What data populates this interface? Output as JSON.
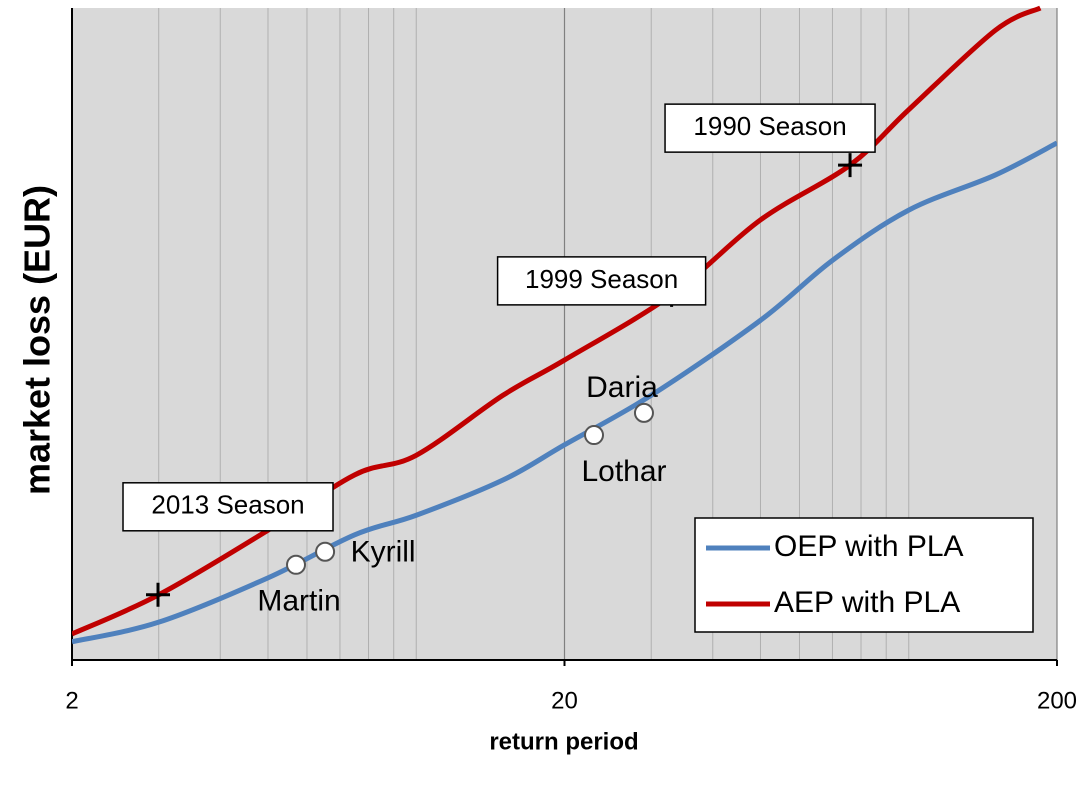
{
  "chart_data": {
    "type": "line",
    "y_label": "market loss (EUR)",
    "x_label": "return period",
    "log_x": true,
    "xlim": [
      2,
      200
    ],
    "xticks": [
      2,
      20,
      200
    ],
    "xminorticks": [
      3,
      4,
      5,
      6,
      7,
      8,
      9,
      10,
      30,
      40,
      50,
      60,
      70,
      80,
      90,
      100
    ],
    "ylim": [
      0,
      100
    ],
    "grid": true,
    "legend": "lower right",
    "series": [
      {
        "name": "OEP with PLA",
        "color": "#4f81bd",
        "x": [
          2,
          3,
          5,
          7.5,
          10,
          15,
          20,
          30,
          50,
          70,
          100,
          150,
          200
        ],
        "values": [
          2.8,
          5.8,
          12.6,
          19.2,
          22.2,
          27.6,
          33.0,
          40.6,
          52.1,
          61.3,
          69.0,
          74.4,
          79.3
        ]
      },
      {
        "name": "AEP with PLA",
        "color": "#c00000",
        "x": [
          2,
          3,
          5,
          7.5,
          10,
          15,
          20,
          33,
          50,
          76,
          100,
          150,
          185
        ],
        "values": [
          4.0,
          10.0,
          19.9,
          28.4,
          31.4,
          40.6,
          46.0,
          56.0,
          67.5,
          75.9,
          84.4,
          96.6,
          100
        ]
      }
    ],
    "annotations": [
      {
        "text": "2013 Season",
        "x": 2.99,
        "y": 10.0,
        "marker": "plus"
      },
      {
        "text": "1999 Season",
        "x": 33.0,
        "y": 56.0,
        "marker": "plus"
      },
      {
        "text": "1990 Season",
        "x": 76.0,
        "y": 75.9,
        "marker": "plus"
      },
      {
        "text": "Martin",
        "x": 5.7,
        "y": 14.6,
        "marker": "circle"
      },
      {
        "text": "Kyrill",
        "x": 6.53,
        "y": 16.6,
        "marker": "circle"
      },
      {
        "text": "Lothar",
        "x": 22.96,
        "y": 34.5,
        "marker": "circle"
      },
      {
        "text": "Daria",
        "x": 29.0,
        "y": 37.9,
        "marker": "circle"
      }
    ]
  }
}
